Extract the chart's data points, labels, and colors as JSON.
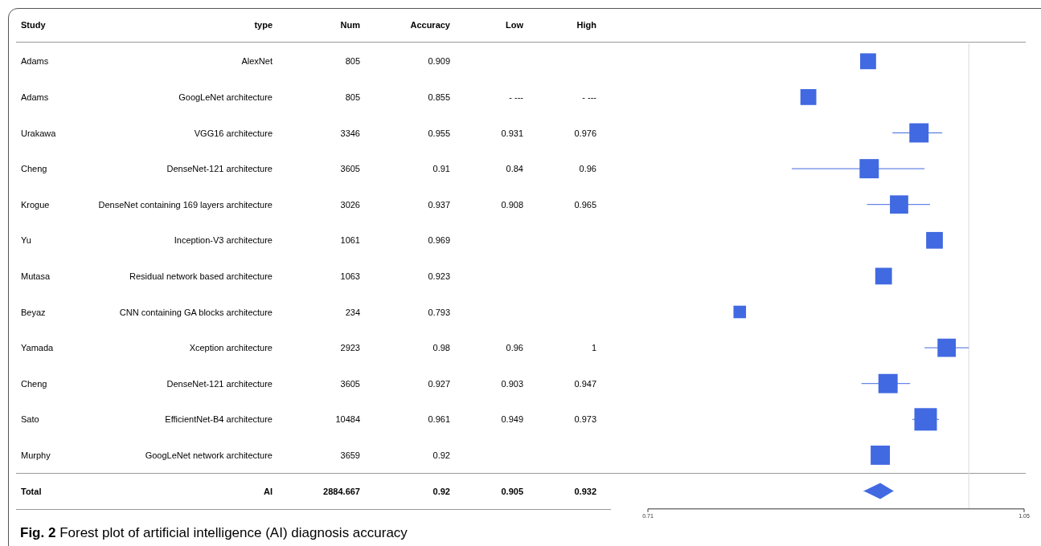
{
  "chart_data": [
    {
      "type": "other",
      "annotations": [
        "Study",
        "type",
        "Num",
        "Accuracy",
        "Low",
        "High",
        "Adams",
        "AlexNet",
        "805",
        "0.909",
        null,
        null,
        "Adams",
        "GoogLeNet architecture",
        "805",
        "0.855",
        "- ---",
        "- ---",
        "Urakawa",
        "VGG16 architecture",
        "3346",
        "0.955",
        "0.931",
        "0.976",
        "Cheng",
        "DenseNet-121 architecture",
        "3605",
        "0.91",
        "0.84",
        "0.96",
        "Krogue",
        "DenseNet containing 169 layers architecture",
        "3026",
        "0.937",
        "0.908",
        "0.965",
        "Yu",
        "Inception-V3 architecture",
        "1061",
        "0.969",
        null,
        null,
        "Mutasa",
        "Residual network based architecture",
        "1063",
        "0.923",
        null,
        null,
        "Beyaz",
        "CNN containing GA blocks architecture",
        "234",
        "0.793",
        null,
        null,
        "Yamada",
        "Xception architecture",
        "2923",
        "0.98",
        "0.96",
        "1",
        "Cheng",
        "DenseNet-121 architecture",
        "3605",
        "0.927",
        "0.903",
        "0.947",
        "Sato",
        "EfficientNet-B4 architecture",
        "10484",
        "0.961",
        "0.949",
        "0.973",
        "Murphy",
        "GoogLeNet network architecture",
        "3659",
        "0.92",
        null,
        null,
        "Total",
        "AI",
        "2884.667",
        "0.92",
        "0.905",
        "0.932"
      ]
    },
    {
      "type": "scatter",
      "orientation": "horizontal",
      "annotations": [
        "Fig. 2 Forest plot of artificial intelligence (AI) diagnosis accuracy"
      ],
      "categories": [
        null,
        null,
        null,
        null,
        null,
        null,
        null,
        null,
        null,
        null,
        null,
        null,
        null
      ],
      "series": [
        {
          "type": "scatter",
          "marker": "square",
          "color": "#4169e1",
          "values": [
            0.909,
            0.855,
            0.955,
            0.91,
            0.937,
            0.969,
            0.923,
            0.793,
            0.98,
            0.927,
            0.961,
            0.92,
            null
          ],
          "errors": [
            null,
            null,
            [
              0.931,
              0.976
            ],
            [
              0.84,
              0.96
            ],
            [
              0.908,
              0.965
            ],
            null,
            null,
            null,
            [
              0.96,
              1
            ],
            [
              0.903,
              0.947
            ],
            [
              0.949,
              0.973
            ],
            null,
            null
          ],
          "sizes": [
            0.5,
            0.5,
            0.73,
            0.73,
            0.66,
            0.55,
            0.55,
            0.31,
            0.66,
            0.73,
            1,
            0.73,
            null
          ]
        },
        {
          "type": "scatter",
          "marker": "diamond",
          "color": "#4169e1",
          "values": [
            null,
            null,
            null,
            null,
            null,
            null,
            null,
            null,
            null,
            null,
            null,
            null,
            0.92
          ],
          "errors": [
            null,
            null,
            null,
            null,
            null,
            null,
            null,
            null,
            null,
            null,
            null,
            null,
            [
              0.905,
              0.932
            ]
          ]
        }
      ],
      "xlim": [
        0.71,
        1.05
      ],
      "xticks": [
        0.71,
        1.05
      ],
      "ref_lines": [
        {
          "axis": "x",
          "value": 1,
          "color": "#d9d9d9"
        }
      ]
    }
  ]
}
